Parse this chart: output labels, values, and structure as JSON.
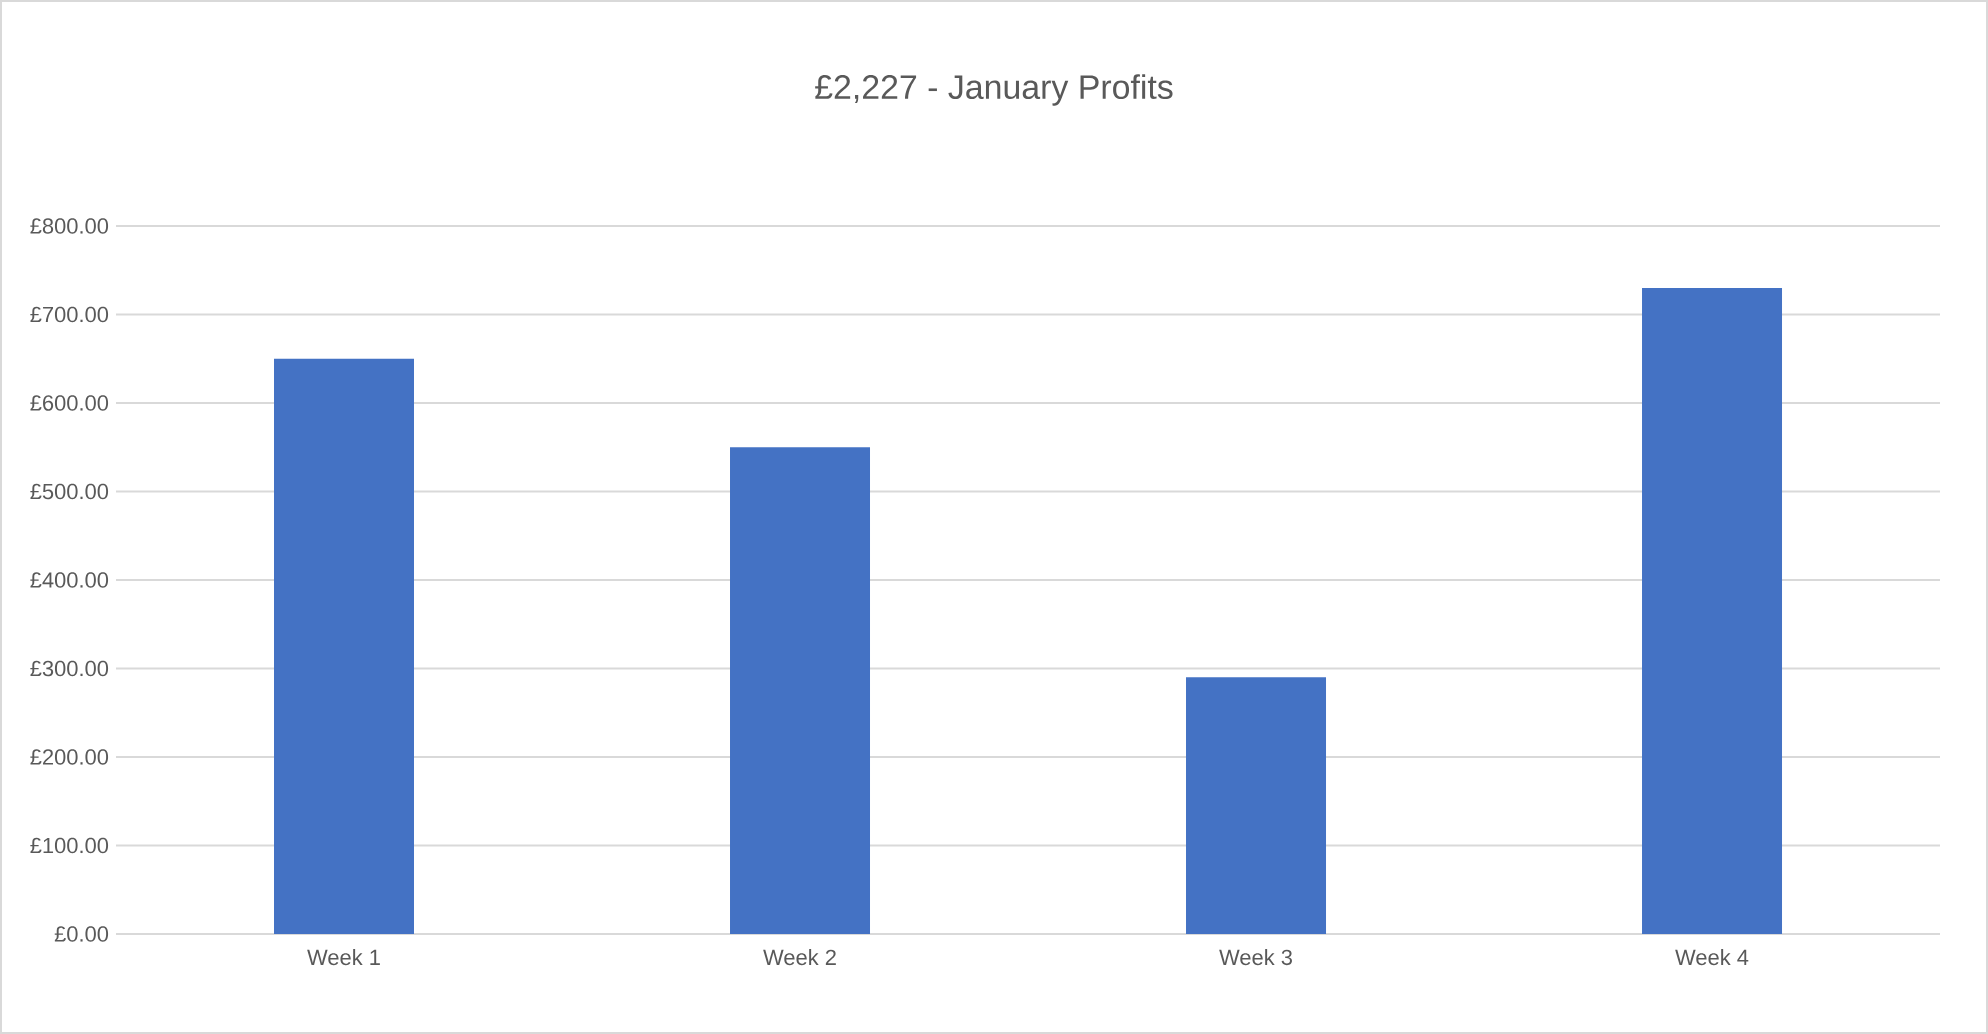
{
  "chart_data": {
    "type": "bar",
    "title": "£2,227 - January Profits",
    "categories": [
      "Week 1",
      "Week 2",
      "Week 3",
      "Week 4"
    ],
    "values": [
      650,
      550,
      290,
      730
    ],
    "color": "#4472c4",
    "ylim": [
      0,
      800
    ],
    "yticks": [
      {
        "value": 0,
        "label": "£0.00"
      },
      {
        "value": 100,
        "label": "£100.00"
      },
      {
        "value": 200,
        "label": "£200.00"
      },
      {
        "value": 300,
        "label": "£300.00"
      },
      {
        "value": 400,
        "label": "£400.00"
      },
      {
        "value": 500,
        "label": "£500.00"
      },
      {
        "value": 600,
        "label": "£600.00"
      },
      {
        "value": 700,
        "label": "£700.00"
      },
      {
        "value": 800,
        "label": "£800.00"
      }
    ],
    "grid": "y"
  }
}
